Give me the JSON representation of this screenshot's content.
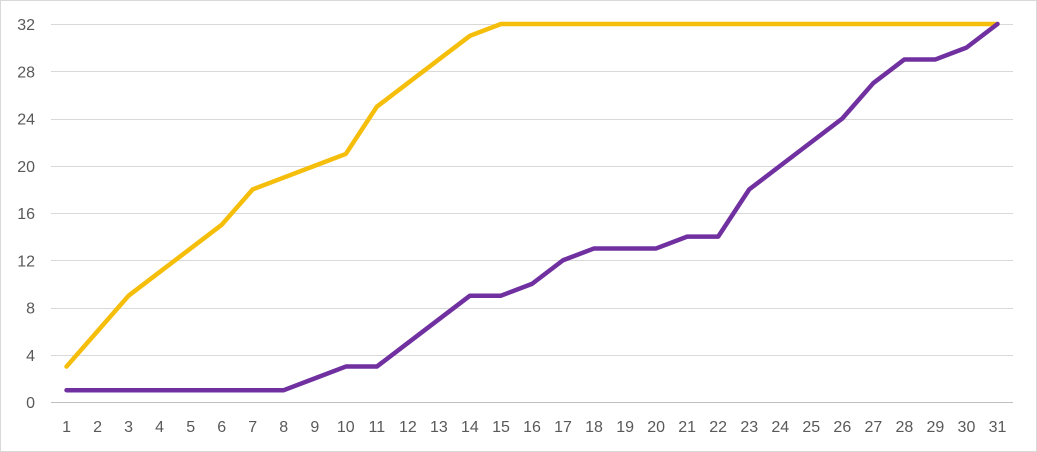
{
  "chart_data": {
    "type": "line",
    "title": "",
    "xlabel": "",
    "ylabel": "",
    "x": [
      1,
      2,
      3,
      4,
      5,
      6,
      7,
      8,
      9,
      10,
      11,
      12,
      13,
      14,
      15,
      16,
      17,
      18,
      19,
      20,
      21,
      22,
      23,
      24,
      25,
      26,
      27,
      28,
      29,
      30,
      31
    ],
    "ylim": [
      0,
      32
    ],
    "yticks": [
      0,
      4,
      8,
      12,
      16,
      20,
      24,
      28,
      32
    ],
    "grid": true,
    "legend": "none",
    "series": [
      {
        "color": "#F5BE0B",
        "values": [
          3,
          6,
          9,
          11,
          13,
          15,
          18,
          19,
          20,
          21,
          25,
          27,
          29,
          31,
          32,
          32,
          32,
          32,
          32,
          32,
          32,
          32,
          32,
          32,
          32,
          32,
          32,
          32,
          32,
          32,
          32
        ]
      },
      {
        "color": "#7030A0",
        "values": [
          1,
          1,
          1,
          1,
          1,
          1,
          1,
          1,
          2,
          3,
          3,
          5,
          7,
          9,
          9,
          10,
          12,
          13,
          13,
          13,
          14,
          14,
          18,
          20,
          22,
          24,
          27,
          29,
          29,
          30,
          32
        ]
      }
    ],
    "gridline_color": "#d9d9d9",
    "axis_color": "#bfbfbf"
  }
}
